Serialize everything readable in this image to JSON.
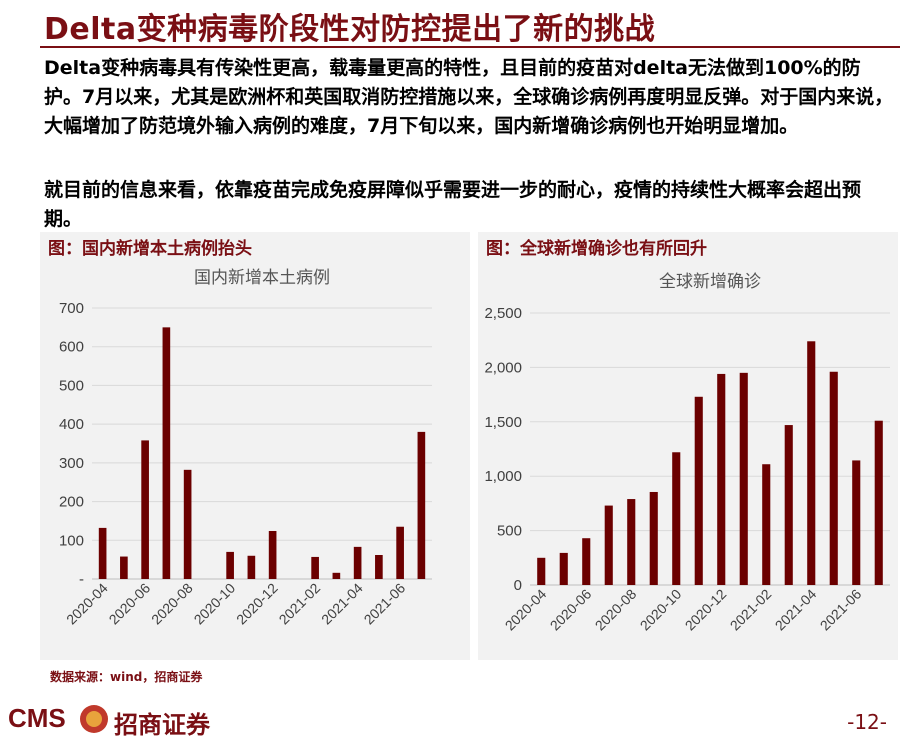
{
  "title": "Delta变种病毒阶段性对防控提出了新的挑战",
  "paragraphs": [
    "Delta变种病毒具有传染性更高，载毒量更高的特性，且目前的疫苗对delta无法做到100%的防护。7月以来，尤其是欧洲杯和英国取消防控措施以来，全球确诊病例再度明显反弹。对于国内来说，大幅增加了防范境外输入病例的难度，7月下旬以来，国内新增确诊病例也开始明显增加。",
    "就目前的信息来看，依靠疫苗完成免疫屏障似乎需要进一步的耐心，疫情的持续性大概率会超出预期。"
  ],
  "source": "数据来源：wind，招商证券",
  "brand": {
    "cms": "CMS",
    "name": "招商证券"
  },
  "page_number": "-12-",
  "colors": {
    "bar": "#6b0000",
    "accent": "#7a0f14",
    "panel_bg": "#f2f2f2",
    "grid": "#d9d9d9"
  },
  "chart_data": [
    {
      "type": "bar",
      "figure_label": "图：国内新增本土病例抬头",
      "title": "国内新增本土病例",
      "categories": [
        "2020-04",
        "2020-05",
        "2020-06",
        "2020-07",
        "2020-08",
        "2020-09",
        "2020-10",
        "2020-11",
        "2020-12",
        "2021-01",
        "2021-02",
        "2021-03",
        "2021-04",
        "2021-05",
        "2021-06",
        "2021-07"
      ],
      "values": [
        132,
        58,
        358,
        650,
        282,
        0,
        70,
        60,
        124,
        0,
        57,
        16,
        83,
        62,
        135,
        380
      ],
      "xtick_labels": [
        "2020-04",
        "2020-06",
        "2020-08",
        "2020-10",
        "2020-12",
        "2021-02",
        "2021-04",
        "2021-06"
      ],
      "ytick_labels": [
        "-",
        "100",
        "200",
        "300",
        "400",
        "500",
        "600",
        "700"
      ],
      "ylim": [
        0,
        700
      ],
      "grid": true,
      "legend": false
    },
    {
      "type": "bar",
      "figure_label": "图：全球新增确诊也有所回升",
      "title": "全球新增确诊",
      "categories": [
        "2020-04",
        "2020-05",
        "2020-06",
        "2020-07",
        "2020-08",
        "2020-09",
        "2020-10",
        "2020-11",
        "2020-12",
        "2021-01",
        "2021-02",
        "2021-03",
        "2021-04",
        "2021-05",
        "2021-06",
        "2021-07"
      ],
      "values": [
        250,
        295,
        430,
        730,
        790,
        855,
        1220,
        1730,
        1940,
        1950,
        1110,
        1470,
        2240,
        1960,
        1145,
        1510
      ],
      "xtick_labels": [
        "2020-04",
        "2020-06",
        "2020-08",
        "2020-10",
        "2020-12",
        "2021-02",
        "2021-04",
        "2021-06"
      ],
      "ytick_labels": [
        "0",
        "500",
        "1,000",
        "1,500",
        "2,000",
        "2,500"
      ],
      "ylim": [
        0,
        2500
      ],
      "grid": true,
      "legend": false
    }
  ]
}
